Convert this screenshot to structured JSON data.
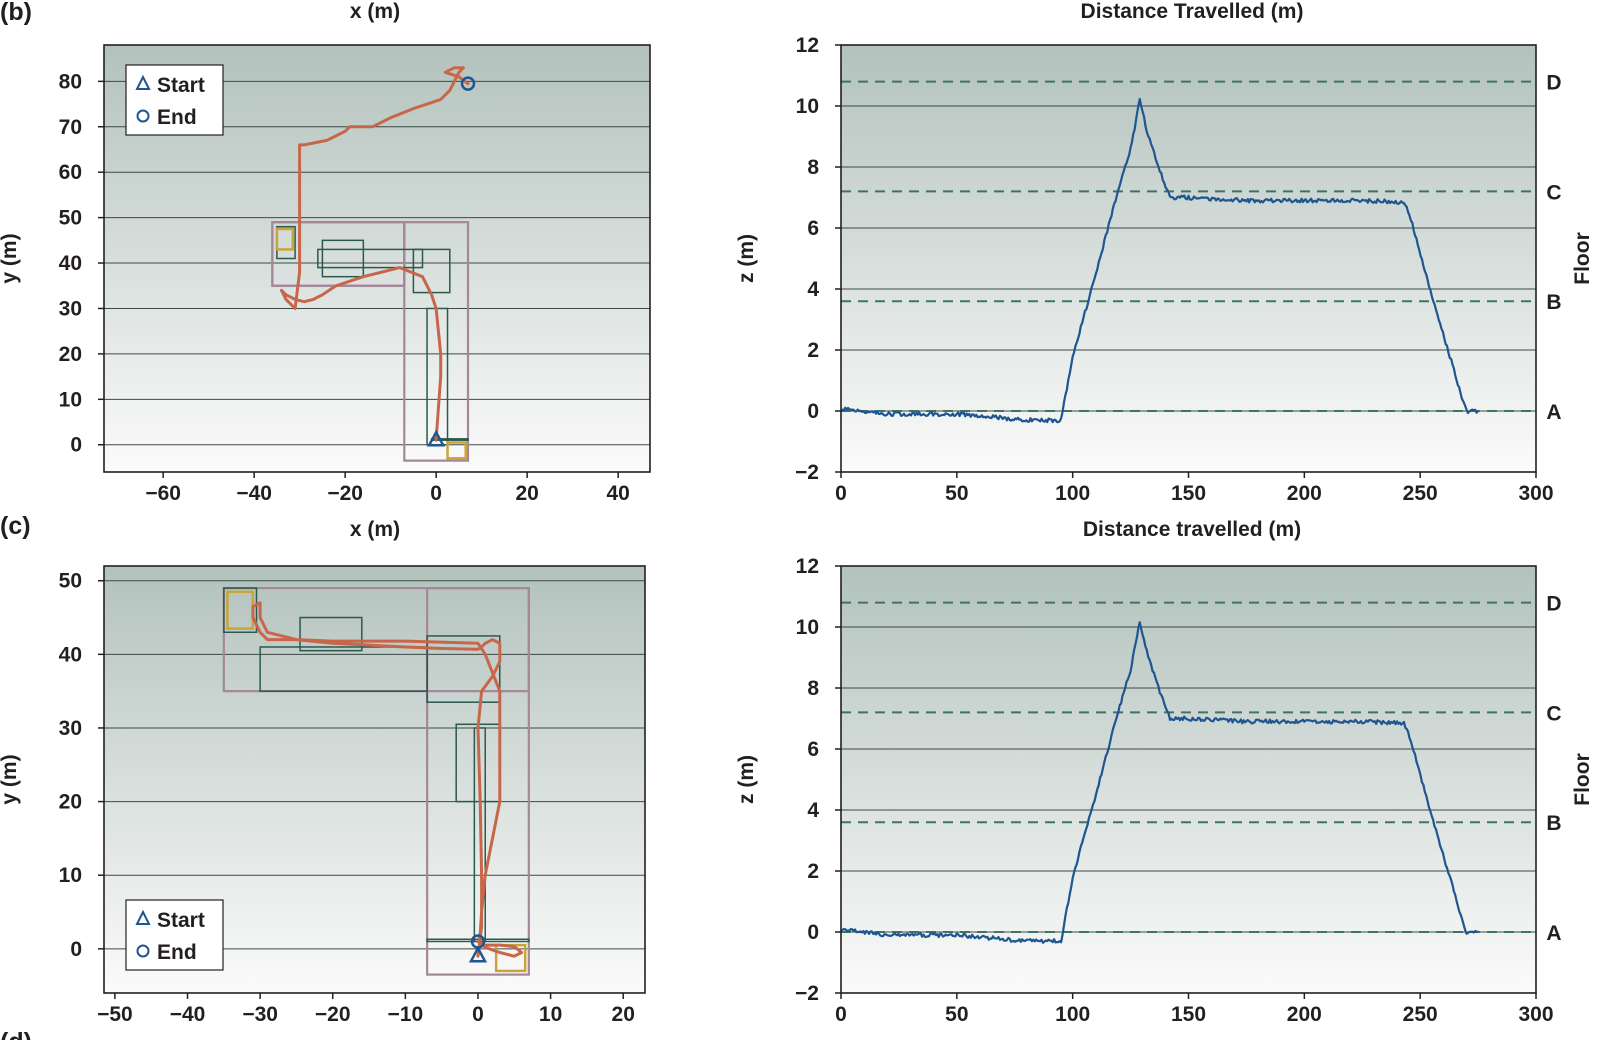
{
  "panel_letters": {
    "top": "(b)",
    "middle": "(c)",
    "bottom": "(d)"
  },
  "top_clipped_labels": {
    "left_xlabel": "x (m)",
    "right_xlabel": "Distance Travelled (m)"
  },
  "colors": {
    "bg_top": "#b3c2bd",
    "bg_bottom": "#fbfbfa",
    "trajectory": "#c8664a",
    "altitude": "#1f5590",
    "floor_plan": "#2a5a4e",
    "building_outline": "#a4879a",
    "stairs": "#c9a43b",
    "floor_line": "#3f7464",
    "marker": "#1f5590"
  },
  "chart_data": [
    {
      "panel": "(b) left",
      "type": "line",
      "description_of_series": "trajectory",
      "xlabel": "x (m)",
      "ylabel": "y (m)",
      "xlim": [
        -73,
        47
      ],
      "ylim": [
        -6,
        88
      ],
      "xticks": [
        -60,
        -40,
        -20,
        0,
        20,
        40
      ],
      "yticks": [
        0,
        10,
        20,
        30,
        40,
        50,
        60,
        70,
        80
      ],
      "legend": {
        "position": "top-left",
        "entries": [
          "Start",
          "End"
        ]
      },
      "start": [
        0,
        1
      ],
      "end": [
        7,
        79.5
      ],
      "x": [
        0,
        0.5,
        1,
        1,
        0.5,
        0,
        -1,
        -3,
        -8,
        -16,
        -22,
        -25,
        -27,
        -29,
        -31,
        -33,
        -34,
        -33,
        -31,
        -30,
        -30,
        -30,
        -30,
        -30,
        -30,
        -29,
        -24,
        -20,
        -19,
        -17,
        -14,
        -10,
        -5,
        1,
        3,
        4,
        5,
        6,
        4,
        2,
        5,
        7
      ],
      "y": [
        1,
        8,
        15,
        20,
        25,
        30,
        33,
        37,
        39,
        37,
        35,
        33,
        32,
        31.5,
        32,
        33,
        34,
        32,
        30,
        38,
        48,
        56,
        62,
        65,
        66,
        66,
        67,
        69,
        70,
        70,
        70,
        72,
        74,
        76,
        78,
        80,
        82,
        83,
        83,
        82,
        81,
        79.5
      ]
    },
    {
      "panel": "(b) right",
      "type": "line",
      "xlabel": "",
      "ylabel": "z (m)",
      "right_ylabel": "Floor",
      "xlim": [
        0,
        300
      ],
      "ylim": [
        -2,
        12
      ],
      "xticks": [
        0,
        50,
        100,
        150,
        200,
        250,
        300
      ],
      "yticks": [
        -2,
        0,
        2,
        4,
        6,
        8,
        10,
        12
      ],
      "floors": [
        {
          "name": "A",
          "z": 0
        },
        {
          "name": "B",
          "z": 3.6
        },
        {
          "name": "C",
          "z": 7.2
        },
        {
          "name": "D",
          "z": 10.8
        }
      ],
      "x": [
        0,
        20,
        50,
        80,
        95,
        100,
        110,
        118,
        125,
        129,
        132,
        137,
        142,
        150,
        175,
        200,
        225,
        243,
        246,
        252,
        258,
        264,
        268,
        270,
        275
      ],
      "y": [
        0.1,
        -0.1,
        -0.1,
        -0.3,
        -0.3,
        1.8,
        4.5,
        6.8,
        8.6,
        10.2,
        9.2,
        8.0,
        7.0,
        7.0,
        6.9,
        6.9,
        6.9,
        6.85,
        6.3,
        4.6,
        3.0,
        1.5,
        0.4,
        0.0,
        0.0
      ]
    },
    {
      "panel": "(c) left",
      "type": "line",
      "description_of_series": "trajectory",
      "xlabel": "",
      "ylabel": "y (m)",
      "xlim": [
        -51.5,
        23
      ],
      "ylim": [
        -6,
        52
      ],
      "xticks": [
        -50,
        -40,
        -30,
        -20,
        -10,
        0,
        10,
        20
      ],
      "yticks": [
        0,
        10,
        20,
        30,
        40,
        50
      ],
      "legend": {
        "position": "bottom-left",
        "entries": [
          "Start",
          "End"
        ]
      },
      "start": [
        0,
        -1
      ],
      "end": [
        0,
        1
      ],
      "x": [
        0,
        0.5,
        0.5,
        0.3,
        0,
        0.5,
        2,
        3,
        3,
        3,
        2,
        1,
        0.5,
        0,
        -5,
        -10,
        -20,
        -25,
        -29,
        -30,
        -31,
        -31,
        -30,
        -30,
        -29,
        -25,
        -20,
        -10,
        0,
        1,
        3,
        3,
        3,
        3,
        2,
        1,
        0.5,
        0.3,
        0,
        1,
        3,
        5,
        6,
        5,
        3,
        1,
        0
      ],
      "y": [
        -1,
        3,
        10,
        20,
        30,
        35,
        37,
        39,
        40.5,
        41.5,
        42,
        41.5,
        41,
        40.7,
        40.8,
        41,
        41.5,
        42,
        42,
        43,
        45,
        46.5,
        47,
        45,
        43,
        42,
        41.8,
        41.8,
        41.5,
        40,
        35,
        30,
        25,
        20,
        15,
        10,
        5,
        2,
        1,
        0.5,
        0.5,
        0.3,
        -0.5,
        -1,
        -0.5,
        0.2,
        1
      ]
    },
    {
      "panel": "(c) right",
      "type": "line",
      "xlabel": "",
      "ylabel": "z (m)",
      "right_ylabel": "Floor",
      "xlim": [
        0,
        300
      ],
      "ylim": [
        -2,
        12
      ],
      "xticks": [
        0,
        50,
        100,
        150,
        200,
        250,
        300
      ],
      "yticks": [
        -2,
        0,
        2,
        4,
        6,
        8,
        10,
        12
      ],
      "floors": [
        {
          "name": "A",
          "z": 0
        },
        {
          "name": "B",
          "z": 3.6
        },
        {
          "name": "C",
          "z": 7.2
        },
        {
          "name": "D",
          "z": 10.8
        }
      ],
      "x": [
        0,
        20,
        50,
        80,
        95,
        100,
        110,
        118,
        125,
        129,
        132,
        137,
        142,
        150,
        175,
        200,
        225,
        243,
        246,
        252,
        258,
        264,
        268,
        270,
        275
      ],
      "y": [
        0.1,
        -0.1,
        -0.1,
        -0.3,
        -0.3,
        1.8,
        4.5,
        6.8,
        8.6,
        10.2,
        9.2,
        8.0,
        7.0,
        7.0,
        6.9,
        6.9,
        6.9,
        6.85,
        6.3,
        4.6,
        3.0,
        1.5,
        0.4,
        0.0,
        0.0
      ]
    }
  ],
  "panels_b_c_labels": {
    "b_left_xlabel": "x (m)",
    "b_right_xlabel": "Distance travelled (m)"
  }
}
